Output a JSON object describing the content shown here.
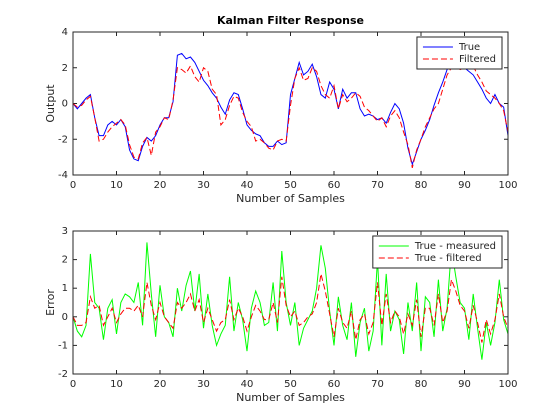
{
  "chart_data": [
    {
      "type": "line",
      "title": "Kalman Filter Response",
      "xlabel": "Number of Samples",
      "ylabel": "Output",
      "x": [
        0,
        1,
        2,
        3,
        4,
        5,
        6,
        7,
        8,
        9,
        10,
        11,
        12,
        13,
        14,
        15,
        16,
        17,
        18,
        19,
        20,
        21,
        22,
        23,
        24,
        25,
        26,
        27,
        28,
        29,
        30,
        31,
        32,
        33,
        34,
        35,
        36,
        37,
        38,
        39,
        40,
        41,
        42,
        43,
        44,
        45,
        46,
        47,
        48,
        49,
        50,
        51,
        52,
        53,
        54,
        55,
        56,
        57,
        58,
        59,
        60,
        61,
        62,
        63,
        64,
        65,
        66,
        67,
        68,
        69,
        70,
        71,
        72,
        73,
        74,
        75,
        76,
        77,
        78,
        79,
        80,
        81,
        82,
        83,
        84,
        85,
        86,
        87,
        88,
        89,
        90,
        91,
        92,
        93,
        94,
        95,
        96,
        97,
        98,
        99,
        100
      ],
      "series": [
        {
          "name": "True",
          "color": "#0000ff",
          "linestyle": "-",
          "values": [
            0.0,
            -0.3,
            0.0,
            0.3,
            0.5,
            -0.8,
            -1.8,
            -1.8,
            -1.2,
            -1.0,
            -1.2,
            -0.9,
            -1.3,
            -2.6,
            -3.1,
            -3.2,
            -2.4,
            -1.9,
            -2.1,
            -1.8,
            -1.2,
            -0.8,
            -0.8,
            0.1,
            2.7,
            2.8,
            2.5,
            2.6,
            2.3,
            1.8,
            1.3,
            1.0,
            0.6,
            0.3,
            -0.2,
            -0.6,
            0.2,
            0.6,
            0.5,
            -0.3,
            -1.2,
            -1.5,
            -1.7,
            -1.8,
            -2.2,
            -2.4,
            -2.4,
            -2.1,
            -2.3,
            -2.2,
            0.5,
            1.4,
            2.3,
            1.6,
            1.8,
            2.2,
            1.5,
            0.5,
            0.3,
            1.2,
            0.8,
            -0.3,
            0.8,
            0.3,
            0.6,
            0.6,
            -0.3,
            -0.7,
            -0.6,
            -0.7,
            -0.9,
            -0.8,
            -1.1,
            -0.5,
            0.0,
            -0.3,
            -1.1,
            -2.5,
            -3.4,
            -2.7,
            -2.0,
            -1.5,
            -0.9,
            -0.1,
            0.6,
            1.2,
            1.9,
            2.5,
            2.7,
            2.3,
            2.0,
            1.8,
            1.6,
            1.2,
            0.8,
            0.3,
            0.0,
            0.5,
            0.0,
            -0.2,
            -1.8
          ]
        },
        {
          "name": "Filtered",
          "color": "#ff0000",
          "linestyle": "--",
          "values": [
            0.0,
            -0.2,
            -0.1,
            0.2,
            0.4,
            -0.8,
            -2.1,
            -2.0,
            -1.6,
            -1.3,
            -1.1,
            -0.9,
            -1.2,
            -2.3,
            -3.0,
            -3.1,
            -2.2,
            -1.9,
            -2.9,
            -1.6,
            -1.3,
            -0.8,
            -0.9,
            0.2,
            2.0,
            1.9,
            1.7,
            2.1,
            1.5,
            1.2,
            2.0,
            1.8,
            0.8,
            0.5,
            -1.2,
            -0.9,
            -0.1,
            0.4,
            0.3,
            -0.5,
            -1.0,
            -1.3,
            -2.1,
            -2.0,
            -2.2,
            -2.5,
            -2.6,
            -2.1,
            -2.0,
            -2.1,
            -0.1,
            1.4,
            2.0,
            1.3,
            1.4,
            2.0,
            1.8,
            1.0,
            0.5,
            0.3,
            1.0,
            -0.3,
            0.5,
            0.1,
            0.3,
            0.6,
            0.4,
            -0.2,
            -0.4,
            -0.7,
            -1.0,
            -0.8,
            -1.3,
            -0.7,
            -0.4,
            -0.8,
            -1.6,
            -2.3,
            -3.6,
            -2.6,
            -2.0,
            -1.3,
            -0.8,
            -0.3,
            0.0,
            0.8,
            1.6,
            2.0,
            2.1,
            1.9,
            2.0,
            2.0,
            2.1,
            1.6,
            1.2,
            0.7,
            0.5,
            0.3,
            0.0,
            -0.4,
            -1.6
          ]
        }
      ],
      "xlim": [
        0,
        100
      ],
      "xticks": [
        0,
        10,
        20,
        30,
        40,
        50,
        60,
        70,
        80,
        90,
        100
      ],
      "ylim": [
        -4,
        4
      ],
      "yticks": [
        -4,
        -2,
        0,
        2,
        4
      ],
      "legend": "northeast"
    },
    {
      "type": "line",
      "xlabel": "Number of Samples",
      "ylabel": "Error",
      "x": [
        0,
        1,
        2,
        3,
        4,
        5,
        6,
        7,
        8,
        9,
        10,
        11,
        12,
        13,
        14,
        15,
        16,
        17,
        18,
        19,
        20,
        21,
        22,
        23,
        24,
        25,
        26,
        27,
        28,
        29,
        30,
        31,
        32,
        33,
        34,
        35,
        36,
        37,
        38,
        39,
        40,
        41,
        42,
        43,
        44,
        45,
        46,
        47,
        48,
        49,
        50,
        51,
        52,
        53,
        54,
        55,
        56,
        57,
        58,
        59,
        60,
        61,
        62,
        63,
        64,
        65,
        66,
        67,
        68,
        69,
        70,
        71,
        72,
        73,
        74,
        75,
        76,
        77,
        78,
        79,
        80,
        81,
        82,
        83,
        84,
        85,
        86,
        87,
        88,
        89,
        90,
        91,
        92,
        93,
        94,
        95,
        96,
        97,
        98,
        99,
        100
      ],
      "series": [
        {
          "name": "True - measured",
          "color": "#00ff00",
          "linestyle": "-",
          "values": [
            0.0,
            -0.5,
            -0.7,
            -0.3,
            2.2,
            0.5,
            0.3,
            -0.8,
            0.3,
            0.6,
            -0.6,
            0.5,
            0.8,
            0.7,
            0.5,
            1.2,
            -0.3,
            2.6,
            0.8,
            -0.7,
            1.1,
            0.0,
            -0.2,
            -0.7,
            1.0,
            0.2,
            1.1,
            1.6,
            0.2,
            1.5,
            -0.4,
            0.8,
            -0.3,
            -1.0,
            -0.6,
            -0.3,
            1.4,
            -0.5,
            0.5,
            -0.1,
            -1.2,
            0.3,
            0.9,
            0.5,
            -0.3,
            -0.2,
            1.2,
            -0.5,
            2.3,
            0.5,
            -0.3,
            0.5,
            -1.0,
            -0.4,
            -0.1,
            0.2,
            1.0,
            2.5,
            1.7,
            0.2,
            -1.0,
            0.7,
            -0.3,
            -0.8,
            0.5,
            -1.4,
            -0.2,
            0.3,
            -1.2,
            -0.5,
            2.0,
            -1.0,
            1.5,
            -0.5,
            0.2,
            -0.1,
            -1.3,
            0.5,
            -0.5,
            1.2,
            -1.2,
            0.7,
            0.5,
            -0.7,
            1.3,
            -0.5,
            0.3,
            2.4,
            1.4,
            0.5,
            0.3,
            -0.8,
            0.8,
            -0.4,
            -1.5,
            -0.2,
            -1.0,
            -0.2,
            1.3,
            -0.1,
            -0.6
          ]
        },
        {
          "name": "True - filtered",
          "color": "#ff0000",
          "linestyle": "--",
          "values": [
            0.0,
            -0.3,
            -0.3,
            -0.2,
            0.7,
            0.3,
            0.4,
            -0.3,
            0.0,
            0.3,
            -0.2,
            0.1,
            0.3,
            0.3,
            0.2,
            0.4,
            0.0,
            1.2,
            0.4,
            -0.1,
            0.5,
            0.0,
            -0.2,
            -0.4,
            0.5,
            0.3,
            0.5,
            0.8,
            0.2,
            0.6,
            -0.2,
            0.3,
            -0.1,
            -0.5,
            -0.2,
            -0.1,
            0.6,
            -0.1,
            0.3,
            0.0,
            -0.5,
            0.0,
            0.4,
            0.2,
            -0.1,
            -0.1,
            0.5,
            -0.2,
            1.4,
            0.4,
            0.0,
            0.2,
            -0.3,
            -0.2,
            0.0,
            0.1,
            0.5,
            1.5,
            0.9,
            0.1,
            -0.7,
            0.3,
            -0.2,
            -0.4,
            0.2,
            -0.8,
            -0.1,
            0.1,
            -0.6,
            -0.2,
            1.2,
            -0.3,
            0.8,
            -0.2,
            0.2,
            0.0,
            -0.6,
            0.1,
            -0.3,
            0.6,
            -0.7,
            0.3,
            0.3,
            -0.3,
            0.8,
            -0.2,
            0.2,
            1.3,
            0.9,
            0.4,
            0.2,
            -0.4,
            0.4,
            -0.2,
            -0.9,
            -0.1,
            -0.6,
            -0.1,
            0.8,
            0.0,
            -0.4
          ]
        }
      ],
      "xlim": [
        0,
        100
      ],
      "xticks": [
        0,
        10,
        20,
        30,
        40,
        50,
        60,
        70,
        80,
        90,
        100
      ],
      "ylim": [
        -2,
        3
      ],
      "yticks": [
        -2,
        -1,
        0,
        1,
        2,
        3
      ],
      "legend": "northeast"
    }
  ]
}
